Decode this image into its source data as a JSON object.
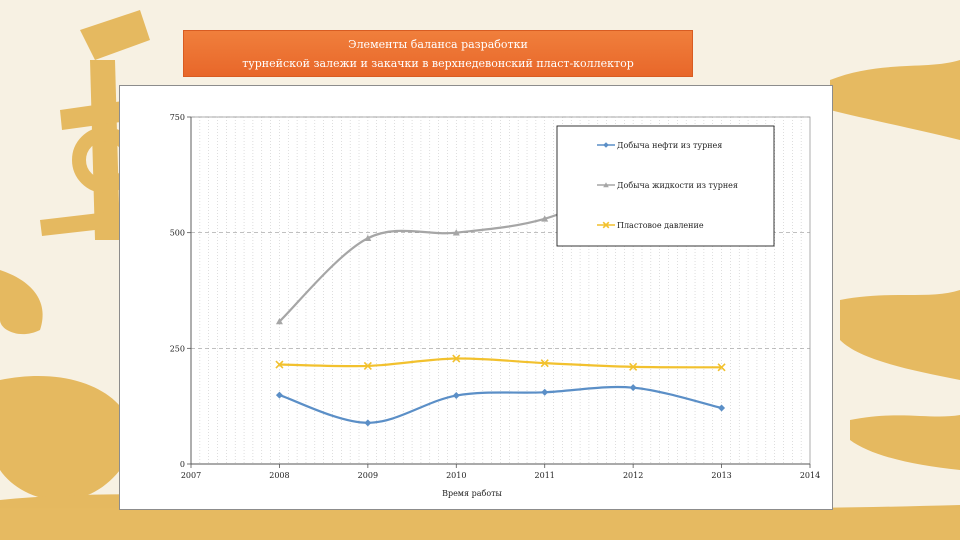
{
  "slide": {
    "title_line1": "Элементы баланса разработки",
    "title_line2": "турнейской залежи и закачки в верхнедевонский пласт-коллектор"
  },
  "colors": {
    "background": "#f7f1e3",
    "decor": "#e3b04a",
    "title_bg": "#ec7434"
  },
  "chart_data": {
    "type": "line",
    "title": "",
    "xlabel": "Время работы",
    "ylabel": "",
    "xlim": [
      2007,
      2014
    ],
    "ylim": [
      0,
      750
    ],
    "x_ticks": [
      2007,
      2008,
      2009,
      2010,
      2011,
      2012,
      2013,
      2014
    ],
    "y_ticks": [
      0,
      250,
      500,
      750
    ],
    "grid": true,
    "legend_position": "top-right",
    "series": [
      {
        "name": "Добыча нефти из турнея",
        "color": "#5b8fc7",
        "marker": "diamond",
        "x": [
          2008,
          2009,
          2010,
          2011,
          2012,
          2013
        ],
        "y": [
          149,
          89,
          148,
          155,
          165,
          121
        ]
      },
      {
        "name": "Добыча жидкости из турнея",
        "color": "#a6a6a6",
        "marker": "triangle",
        "x": [
          2008,
          2009,
          2010,
          2011,
          2012
        ],
        "y": [
          308,
          488,
          500,
          530,
          610
        ]
      },
      {
        "name": "Пластовое давление",
        "color": "#f2c12e",
        "marker": "x",
        "x": [
          2008,
          2009,
          2010,
          2011,
          2012,
          2013
        ],
        "y": [
          215,
          212,
          228,
          218,
          210,
          209
        ]
      }
    ]
  }
}
